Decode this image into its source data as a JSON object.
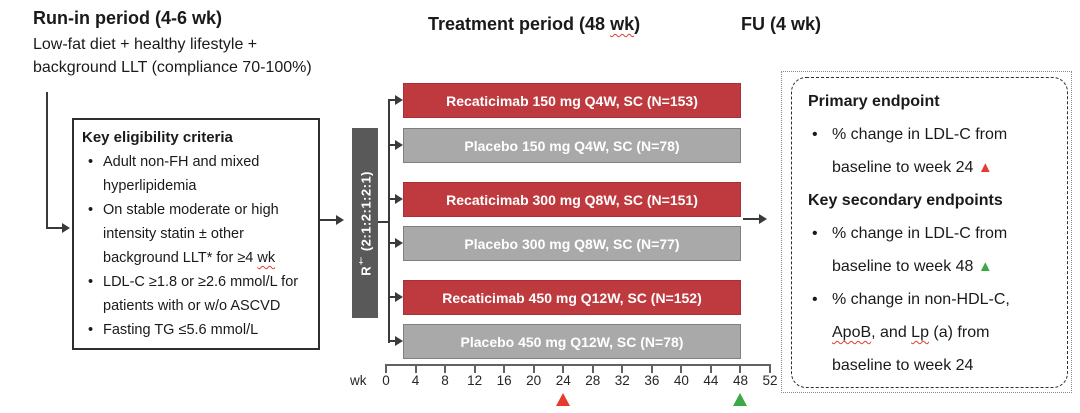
{
  "header": {
    "runin_title": "Run-in period (4-6 wk)",
    "runin_sub_l1": "Low-fat diet + healthy lifestyle +",
    "runin_sub_l2": "background LLT (compliance 70-100%)",
    "treatment_pre": "Treatment period (48 ",
    "treatment_wavy": "wk",
    "treatment_post": ")",
    "fu": "FU (4 wk)"
  },
  "eligibility": {
    "title": "Key eligibility criteria",
    "b1l1": "Adult non-FH and mixed",
    "b1l2": "hyperlipidemia",
    "b2l1": "On stable moderate or high",
    "b2l2": "intensity statin ± other",
    "b2l3_pre": "background LLT* for ≥4 ",
    "b2l3_wavy": "wk",
    "b3l1": "LDL-C ≥1.8 or ≥2.6 mmol/L for",
    "b3l2": "patients with or w/o ASCVD",
    "b4l1": "Fasting TG ≤5.6 mmol/L"
  },
  "randomization": {
    "r": "R",
    "footnote_mark": "†",
    "ratio": " (2:1:2:1:2:1)"
  },
  "arms": [
    {
      "label": "Recaticimab 150 mg Q4W, SC (N=153)",
      "type": "treatment"
    },
    {
      "label": "Placebo 150 mg Q4W, SC (N=78)",
      "type": "placebo"
    },
    {
      "label": "Recaticimab 300 mg Q8W, SC (N=151)",
      "type": "treatment"
    },
    {
      "label": "Placebo 300 mg Q8W, SC (N=77)",
      "type": "placebo"
    },
    {
      "label": "Recaticimab 450 mg Q12W, SC (N=152)",
      "type": "treatment"
    },
    {
      "label": "Placebo 450 mg Q12W, SC (N=78)",
      "type": "placebo"
    }
  ],
  "axis": {
    "unit_label": "wk",
    "max_week": 52,
    "ticks": [
      "0",
      "4",
      "8",
      "12",
      "16",
      "20",
      "24",
      "28",
      "32",
      "36",
      "40",
      "44",
      "48",
      "52"
    ],
    "markers": [
      {
        "week": 24,
        "color": "#e8392e",
        "name": "week-24-primary-marker"
      },
      {
        "week": 48,
        "color": "#3aa946",
        "name": "week-48-secondary-marker"
      }
    ]
  },
  "endpoints": {
    "primary_title": "Primary endpoint",
    "p1l1": "% change in LDL-C from",
    "p1l2": "baseline to week 24",
    "secondary_title": "Key secondary endpoints",
    "s1l1": "% change in LDL-C from",
    "s1l2": "baseline to week 48",
    "s2l1": "% change in non-HDL-C,",
    "s2l2a": "ApoB",
    "s2l2b": ", and ",
    "s2l2c": "Lp",
    "s2l2d": " (a) from",
    "s2l3": "baseline to week 24"
  },
  "icons": {
    "bullet": "•",
    "triangle_up": "▲"
  },
  "colors": {
    "treatment_bar": "#bf3a3e",
    "treatment_bar_border": "#a93136",
    "placebo_bar": "#a9a9a9",
    "placebo_bar_border": "#7f7f7f",
    "randomization_bar": "#595959",
    "marker_red": "#e8392e",
    "marker_green": "#3aa946"
  }
}
